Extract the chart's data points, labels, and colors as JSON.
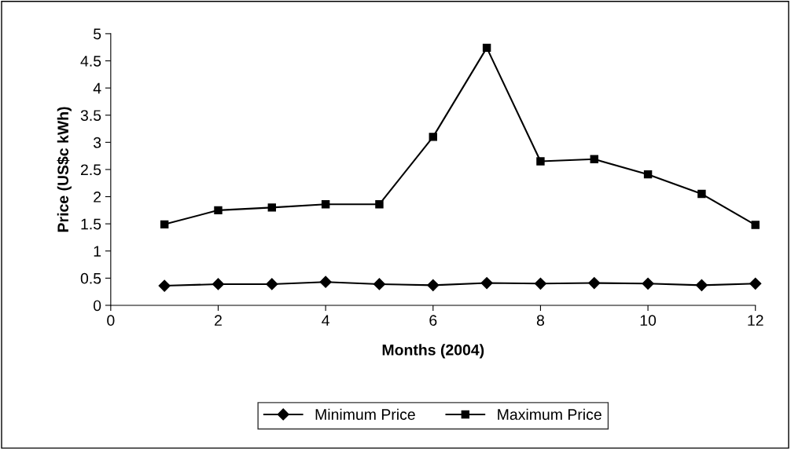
{
  "chart_data": {
    "type": "line",
    "xlabel": "Months (2004)",
    "ylabel": "Price (US$c kWh)",
    "x": [
      1,
      2,
      3,
      4,
      5,
      6,
      7,
      8,
      9,
      10,
      11,
      12
    ],
    "series": [
      {
        "name": "Minimum Price",
        "color": "#000000",
        "marker": "diamond",
        "values": [
          0.36,
          0.39,
          0.39,
          0.43,
          0.39,
          0.37,
          0.41,
          0.4,
          0.41,
          0.4,
          0.37,
          0.4
        ]
      },
      {
        "name": "Maximum Price",
        "color": "#000000",
        "marker": "square",
        "values": [
          1.49,
          1.75,
          1.8,
          1.86,
          1.86,
          3.1,
          4.74,
          2.65,
          2.69,
          2.41,
          2.05,
          1.48
        ]
      }
    ],
    "xlim": [
      0,
      12
    ],
    "xticks": [
      0,
      2,
      4,
      6,
      8,
      10,
      12
    ],
    "ylim": [
      0,
      5
    ],
    "yticks": [
      0,
      0.5,
      1,
      1.5,
      2,
      2.5,
      3,
      3.5,
      4,
      4.5,
      5
    ],
    "grid": false,
    "legend": "bottom",
    "line_style": "solid"
  }
}
